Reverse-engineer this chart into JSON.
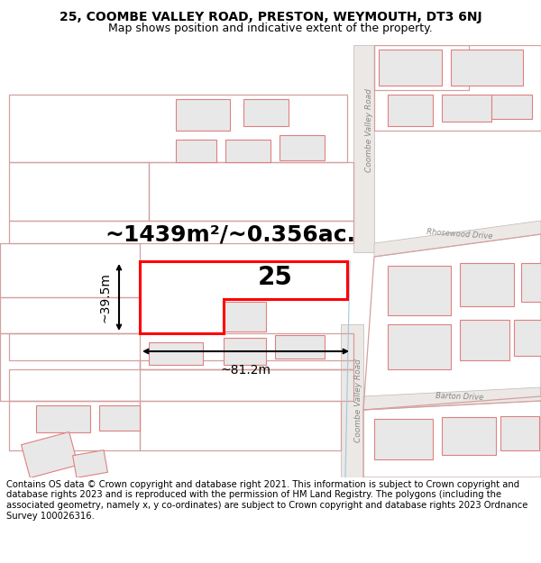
{
  "title": "25, COOMBE VALLEY ROAD, PRESTON, WEYMOUTH, DT3 6NJ",
  "subtitle": "Map shows position and indicative extent of the property.",
  "area_text": "~1439m²/~0.356ac.",
  "property_label": "25",
  "dim_width": "~81.2m",
  "dim_height": "~39.5m",
  "footer": "Contains OS data © Crown copyright and database right 2021. This information is subject to Crown copyright and database rights 2023 and is reproduced with the permission of HM Land Registry. The polygons (including the associated geometry, namely x, y co-ordinates) are subject to Crown copyright and database rights 2023 Ordnance Survey 100026316.",
  "bg_color": "#ffffff",
  "road_color": "#e8e4e2",
  "road_edge": "#c0b8b4",
  "building_fill": "#e8e8e8",
  "building_stroke": "#e08080",
  "plot_stroke": "#d4a0a0",
  "title_fontsize": 10,
  "subtitle_fontsize": 9,
  "area_fontsize": 18,
  "label_fontsize": 20,
  "footer_fontsize": 7.2
}
